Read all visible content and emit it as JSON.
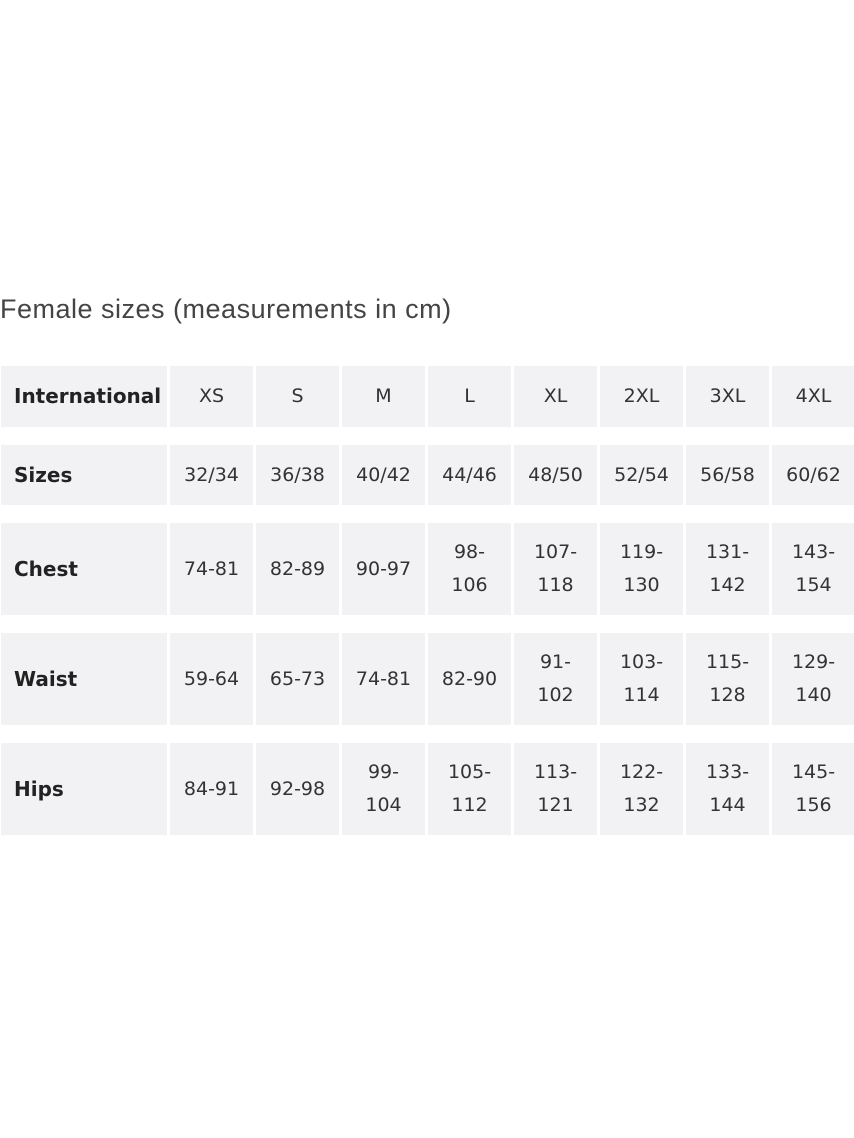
{
  "title": "Female sizes (measurements in cm)",
  "table": {
    "rows": [
      {
        "label": "International",
        "values": [
          "XS",
          "S",
          "M",
          "L",
          "XL",
          "2XL",
          "3XL",
          "4XL"
        ]
      },
      {
        "label": "Sizes",
        "values": [
          "32/34",
          "36/38",
          "40/42",
          "44/46",
          "48/50",
          "52/54",
          "56/58",
          "60/62"
        ]
      },
      {
        "label": "Chest",
        "values": [
          "74-81",
          "82-89",
          "90-97",
          "98-\n106",
          "107-\n118",
          "119-\n130",
          "131-\n142",
          "143-\n154"
        ]
      },
      {
        "label": "Waist",
        "values": [
          "59-64",
          "65-73",
          "74-81",
          "82-90",
          "91-\n102",
          "103-\n114",
          "115-\n128",
          "129-\n140"
        ]
      },
      {
        "label": "Hips",
        "values": [
          "84-91",
          "92-98",
          "99-\n104",
          "105-\n112",
          "113-\n121",
          "122-\n132",
          "133-\n144",
          "145-\n156"
        ]
      }
    ]
  }
}
